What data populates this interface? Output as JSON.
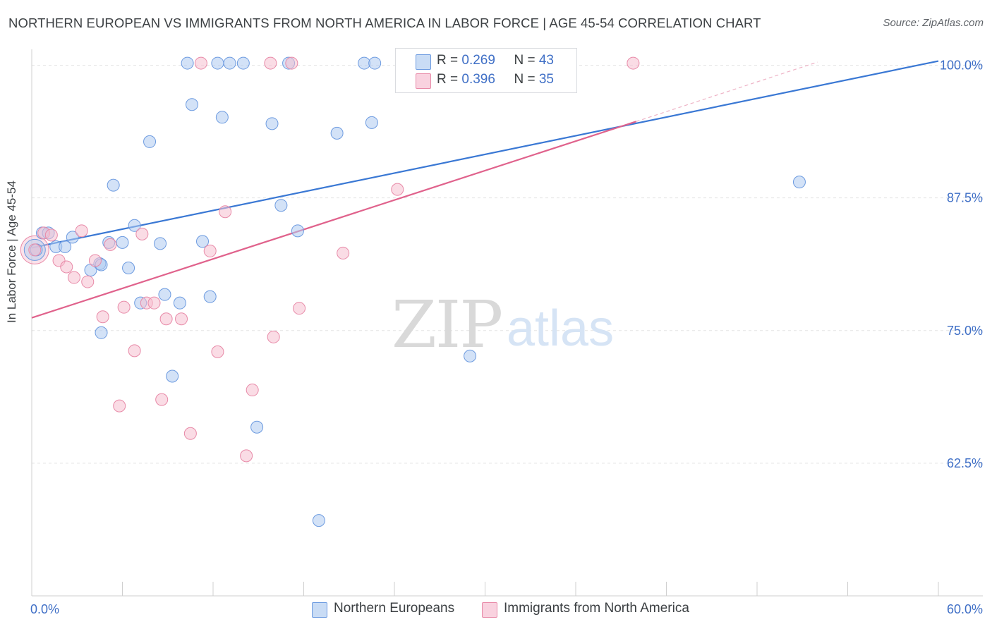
{
  "header": {
    "title": "NORTHERN EUROPEAN VS IMMIGRANTS FROM NORTH AMERICA IN LABOR FORCE | AGE 45-54 CORRELATION CHART",
    "source": "Source: ZipAtlas.com"
  },
  "watermark": {
    "zip": "ZIP",
    "atlas": "atlas"
  },
  "legend": {
    "rows": [
      {
        "r_label": "R = ",
        "r_value": "0.269",
        "n_label": "N = ",
        "n_value": "43"
      },
      {
        "r_label": "R = ",
        "r_value": "0.396",
        "n_label": "N = ",
        "n_value": "35"
      }
    ],
    "bottom": [
      {
        "label": "Northern Europeans"
      },
      {
        "label": "Immigrants from North America"
      }
    ]
  },
  "colors": {
    "blue_fill": "#aecbf0",
    "blue_stroke": "#6d9be0",
    "blue_line": "#3a78d4",
    "pink_fill": "#f6bfd0",
    "pink_stroke": "#e88aa8",
    "pink_line": "#e0628c",
    "tick_label": "#3f6fc6",
    "grid": "#e3e3e3"
  },
  "chart_data": {
    "type": "scatter",
    "title": "NORTHERN EUROPEAN VS IMMIGRANTS FROM NORTH AMERICA IN LABOR FORCE | AGE 45-54 CORRELATION CHART",
    "xlabel": "",
    "ylabel": "In Labor Force | Age 45-54",
    "xlim": [
      0,
      60
    ],
    "ylim": [
      50,
      101.5
    ],
    "x_tick_labels": [
      "0.0%",
      "60.0%"
    ],
    "y_ticks": [
      62.5,
      75.0,
      87.5,
      100.0
    ],
    "y_tick_labels": [
      "62.5%",
      "75.0%",
      "87.5%",
      "100.0%"
    ],
    "grid": true,
    "legend_position": "top-center",
    "series": [
      {
        "name": "Northern Europeans",
        "color": "#aecbf0",
        "points": [
          [
            0.3,
            82.6
          ],
          [
            0.7,
            84.2
          ],
          [
            1.1,
            84.2
          ],
          [
            1.6,
            82.9
          ],
          [
            2.2,
            82.9
          ],
          [
            2.7,
            83.8
          ],
          [
            3.9,
            80.7
          ],
          [
            4.5,
            81.3
          ],
          [
            4.6,
            81.2
          ],
          [
            4.6,
            74.8
          ],
          [
            5.1,
            83.3
          ],
          [
            5.4,
            88.7
          ],
          [
            6.0,
            83.3
          ],
          [
            6.4,
            80.9
          ],
          [
            6.8,
            84.9
          ],
          [
            7.2,
            77.6
          ],
          [
            7.8,
            92.8
          ],
          [
            8.5,
            83.2
          ],
          [
            8.8,
            78.4
          ],
          [
            9.3,
            70.7
          ],
          [
            9.8,
            77.6
          ],
          [
            10.3,
            100.2
          ],
          [
            10.6,
            96.3
          ],
          [
            11.3,
            83.4
          ],
          [
            11.8,
            78.2
          ],
          [
            12.3,
            100.2
          ],
          [
            12.6,
            95.1
          ],
          [
            13.1,
            100.2
          ],
          [
            14.0,
            100.2
          ],
          [
            14.9,
            65.9
          ],
          [
            15.9,
            94.5
          ],
          [
            16.5,
            86.8
          ],
          [
            17.0,
            100.2
          ],
          [
            17.6,
            84.4
          ],
          [
            19.0,
            57.1
          ],
          [
            20.2,
            93.6
          ],
          [
            22.0,
            100.2
          ],
          [
            22.5,
            94.6
          ],
          [
            22.7,
            100.2
          ],
          [
            24.6,
            100.2
          ],
          [
            26.4,
            100.2
          ],
          [
            29.0,
            72.6
          ],
          [
            50.8,
            89.0
          ]
        ]
      },
      {
        "name": "Immigrants from North America",
        "color": "#f6bfd0",
        "points": [
          [
            0.2,
            82.6
          ],
          [
            0.8,
            84.2
          ],
          [
            1.3,
            84.0
          ],
          [
            1.8,
            81.6
          ],
          [
            2.3,
            81.0
          ],
          [
            2.8,
            80.0
          ],
          [
            3.3,
            84.4
          ],
          [
            3.7,
            79.6
          ],
          [
            4.2,
            81.6
          ],
          [
            4.7,
            76.3
          ],
          [
            5.2,
            83.1
          ],
          [
            5.8,
            67.9
          ],
          [
            6.1,
            77.2
          ],
          [
            6.8,
            73.1
          ],
          [
            7.3,
            84.1
          ],
          [
            7.6,
            77.6
          ],
          [
            8.1,
            77.6
          ],
          [
            8.6,
            68.5
          ],
          [
            8.9,
            76.1
          ],
          [
            9.9,
            76.1
          ],
          [
            10.5,
            65.3
          ],
          [
            11.2,
            100.2
          ],
          [
            11.8,
            82.5
          ],
          [
            12.3,
            73.0
          ],
          [
            12.8,
            86.2
          ],
          [
            14.2,
            63.2
          ],
          [
            14.6,
            69.4
          ],
          [
            15.8,
            100.2
          ],
          [
            16.0,
            74.4
          ],
          [
            17.2,
            100.2
          ],
          [
            17.7,
            77.1
          ],
          [
            20.6,
            82.3
          ],
          [
            24.2,
            88.3
          ],
          [
            25.5,
            100.2
          ],
          [
            39.8,
            100.2
          ]
        ]
      }
    ],
    "trend_lines": [
      {
        "series": "Northern Europeans",
        "x": [
          0,
          60
        ],
        "y": [
          82.8,
          100.4
        ]
      },
      {
        "series": "Immigrants from North America",
        "x": [
          0,
          40
        ],
        "y": [
          76.2,
          94.7
        ],
        "dashed_extension_x": [
          40,
          52
        ],
        "dashed_extension_y": [
          94.7,
          100.3
        ]
      }
    ]
  }
}
